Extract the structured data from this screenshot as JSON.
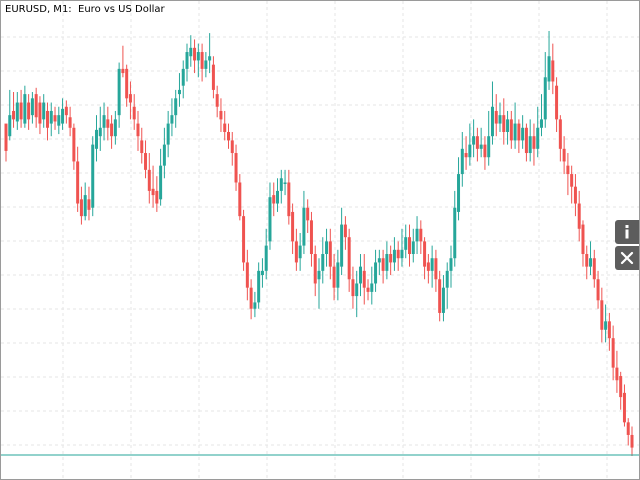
{
  "chart": {
    "title": "EURUSD, M1:  Euro vs US Dollar",
    "symbol": "EURUSD",
    "timeframe": "M1",
    "description": "Euro vs US Dollar"
  },
  "buttons": [
    {
      "name": "info",
      "icon": "info-icon"
    },
    {
      "name": "close",
      "icon": "close-icon"
    }
  ],
  "colors": {
    "bull": "#26a69a",
    "bear": "#ef5350",
    "grid": "#e6e6e6",
    "price_line": "#26a69a",
    "button_bg": "#5d5d5d"
  },
  "chart_data": {
    "type": "candlestick",
    "title": "EURUSD, M1:  Euro vs US Dollar",
    "grid": true,
    "y_axis_shown": false,
    "candles": [
      [
        58,
        45,
        54,
        40
      ],
      [
        52,
        62,
        74,
        50
      ],
      [
        64,
        60,
        73,
        56
      ],
      [
        59,
        68,
        73,
        55
      ],
      [
        68,
        60,
        74,
        56
      ],
      [
        58,
        72,
        76,
        56
      ],
      [
        68,
        60,
        72,
        55
      ],
      [
        62,
        70,
        73,
        58
      ],
      [
        72,
        61,
        75,
        56
      ],
      [
        68,
        58,
        71,
        53
      ],
      [
        60,
        68,
        72,
        56
      ],
      [
        64,
        56,
        68,
        50
      ],
      [
        58,
        64,
        68,
        52
      ],
      [
        62,
        59,
        66,
        55
      ],
      [
        57,
        62,
        66,
        53
      ],
      [
        58,
        65,
        70,
        55
      ],
      [
        66,
        62,
        69,
        58
      ],
      [
        61,
        56,
        66,
        52
      ],
      [
        56,
        40,
        58,
        36
      ],
      [
        40,
        20,
        47,
        16
      ],
      [
        22,
        14,
        28,
        10
      ],
      [
        14,
        24,
        30,
        12
      ],
      [
        22,
        17,
        28,
        12
      ],
      [
        18,
        48,
        52,
        14
      ],
      [
        46,
        55,
        62,
        40
      ],
      [
        52,
        56,
        66,
        45
      ],
      [
        56,
        62,
        68,
        50
      ],
      [
        60,
        56,
        66,
        50
      ],
      [
        58,
        52,
        62,
        46
      ],
      [
        52,
        60,
        64,
        48
      ],
      [
        62,
        84,
        87,
        56
      ],
      [
        84,
        82,
        95,
        80
      ],
      [
        84,
        70,
        86,
        66
      ],
      [
        72,
        68,
        78,
        60
      ],
      [
        66,
        60,
        72,
        55
      ],
      [
        58,
        52,
        64,
        45
      ],
      [
        50,
        44,
        56,
        39
      ],
      [
        44,
        36,
        50,
        32
      ],
      [
        36,
        26,
        44,
        20
      ],
      [
        27,
        24,
        38,
        18
      ],
      [
        26,
        20,
        33,
        16
      ],
      [
        22,
        38,
        46,
        19
      ],
      [
        38,
        48,
        56,
        32
      ],
      [
        48,
        58,
        64,
        42
      ],
      [
        58,
        62,
        70,
        52
      ],
      [
        62,
        70,
        74,
        56
      ],
      [
        72,
        74,
        82,
        66
      ],
      [
        76,
        84,
        88,
        70
      ],
      [
        84,
        92,
        96,
        78
      ],
      [
        90,
        94,
        100,
        85
      ],
      [
        94,
        88,
        98,
        82
      ],
      [
        88,
        92,
        96,
        80
      ],
      [
        92,
        84,
        96,
        78
      ],
      [
        84,
        88,
        92,
        80
      ],
      [
        88,
        90,
        101,
        82
      ],
      [
        86,
        74,
        90,
        70
      ],
      [
        72,
        66,
        76,
        61
      ],
      [
        64,
        60,
        70,
        54
      ],
      [
        58,
        54,
        64,
        50
      ],
      [
        54,
        50,
        58,
        46
      ],
      [
        50,
        44,
        54,
        38
      ],
      [
        44,
        30,
        48,
        26
      ],
      [
        30,
        14,
        34,
        12
      ],
      [
        14,
        -8,
        17,
        -12
      ],
      [
        -8,
        -20,
        -2,
        -26
      ],
      [
        -20,
        -30,
        -16,
        -35
      ],
      [
        -30,
        -27,
        -22,
        -34
      ],
      [
        -27,
        -12,
        -8,
        -30
      ],
      [
        -14,
        -12,
        -6,
        -20
      ],
      [
        -12,
        0,
        8,
        -16
      ],
      [
        2,
        23,
        30,
        -2
      ],
      [
        24,
        20,
        30,
        14
      ],
      [
        20,
        26,
        32,
        16
      ],
      [
        26,
        32,
        36,
        20
      ],
      [
        30,
        30,
        36,
        24
      ],
      [
        30,
        14,
        36,
        10
      ],
      [
        16,
        2,
        20,
        -4
      ],
      [
        2,
        -8,
        8,
        -12
      ],
      [
        -6,
        0,
        6,
        -12
      ],
      [
        0,
        18,
        26,
        -4
      ],
      [
        18,
        12,
        22,
        6
      ],
      [
        12,
        -4,
        16,
        -10
      ],
      [
        -4,
        -18,
        0,
        -24
      ],
      [
        -16,
        -12,
        -6,
        -30
      ],
      [
        -12,
        -4,
        4,
        -18
      ],
      [
        -4,
        2,
        8,
        -10
      ],
      [
        2,
        -10,
        8,
        -16
      ],
      [
        -10,
        -20,
        -4,
        -26
      ],
      [
        -20,
        -8,
        -2,
        -26
      ],
      [
        -10,
        10,
        18,
        -14
      ],
      [
        10,
        4,
        14,
        -2
      ],
      [
        4,
        -16,
        8,
        -22
      ],
      [
        -16,
        -24,
        -10,
        -30
      ],
      [
        -24,
        -18,
        -12,
        -34
      ],
      [
        -18,
        -10,
        -4,
        -24
      ],
      [
        -12,
        -20,
        -4,
        -28
      ],
      [
        -20,
        -22,
        -16,
        -26
      ],
      [
        -22,
        -18,
        -10,
        -28
      ],
      [
        -18,
        -8,
        -2,
        -22
      ],
      [
        -8,
        -6,
        -2,
        -14
      ],
      [
        -6,
        -12,
        -2,
        -18
      ],
      [
        -12,
        -4,
        2,
        -16
      ],
      [
        -4,
        -8,
        0,
        -14
      ],
      [
        -8,
        -2,
        4,
        -12
      ],
      [
        -2,
        -6,
        2,
        -12
      ],
      [
        -6,
        -2,
        8,
        -10
      ],
      [
        -2,
        4,
        10,
        -6
      ],
      [
        4,
        -4,
        10,
        -10
      ],
      [
        -4,
        2,
        8,
        -8
      ],
      [
        2,
        8,
        14,
        -4
      ],
      [
        8,
        2,
        12,
        -4
      ],
      [
        2,
        -10,
        4,
        -16
      ],
      [
        -8,
        -12,
        -4,
        -18
      ],
      [
        -12,
        -6,
        0,
        -20
      ],
      [
        -6,
        -16,
        -2,
        -22
      ],
      [
        -16,
        -32,
        -12,
        -36
      ],
      [
        -32,
        -20,
        -14,
        -36
      ],
      [
        -20,
        -12,
        -8,
        -30
      ],
      [
        -12,
        -6,
        0,
        -20
      ],
      [
        -6,
        18,
        26,
        -10
      ],
      [
        16,
        34,
        42,
        12
      ],
      [
        34,
        46,
        54,
        28
      ],
      [
        44,
        42,
        52,
        36
      ],
      [
        42,
        48,
        58,
        38
      ],
      [
        48,
        52,
        60,
        42
      ],
      [
        52,
        46,
        56,
        40
      ],
      [
        46,
        48,
        56,
        42
      ],
      [
        48,
        42,
        52,
        36
      ],
      [
        42,
        52,
        64,
        38
      ],
      [
        52,
        66,
        78,
        48
      ],
      [
        64,
        58,
        72,
        52
      ],
      [
        58,
        62,
        68,
        54
      ],
      [
        62,
        54,
        70,
        48
      ],
      [
        54,
        60,
        64,
        48
      ],
      [
        60,
        50,
        64,
        46
      ],
      [
        50,
        58,
        68,
        46
      ],
      [
        58,
        50,
        60,
        44
      ],
      [
        50,
        56,
        62,
        46
      ],
      [
        56,
        44,
        58,
        40
      ],
      [
        44,
        52,
        60,
        40
      ],
      [
        52,
        46,
        58,
        38
      ],
      [
        46,
        56,
        66,
        42
      ],
      [
        56,
        60,
        72,
        52
      ],
      [
        60,
        80,
        92,
        56
      ],
      [
        78,
        90,
        102,
        74
      ],
      [
        88,
        78,
        96,
        72
      ],
      [
        76,
        60,
        80,
        54
      ],
      [
        60,
        46,
        62,
        40
      ],
      [
        46,
        40,
        52,
        34
      ],
      [
        38,
        34,
        44,
        24
      ],
      [
        34,
        28,
        38,
        20
      ],
      [
        28,
        20,
        34,
        14
      ],
      [
        20,
        8,
        26,
        2
      ],
      [
        10,
        -4,
        12,
        -10
      ],
      [
        -4,
        -10,
        0,
        -16
      ],
      [
        -10,
        -6,
        2,
        -14
      ],
      [
        -6,
        -16,
        -2,
        -20
      ],
      [
        -16,
        -26,
        -12,
        -30
      ],
      [
        -26,
        -40,
        -20,
        -46
      ],
      [
        -40,
        -36,
        -28,
        -46
      ],
      [
        -36,
        -44,
        -32,
        -50
      ],
      [
        -44,
        -58,
        -38,
        -64
      ],
      [
        -58,
        -64,
        -50,
        -70
      ],
      [
        -62,
        -72,
        -60,
        -78
      ],
      [
        -70,
        -84,
        -66,
        -86
      ],
      [
        -84,
        -90,
        -82,
        -95
      ],
      [
        -90,
        -96,
        -86,
        -100
      ]
    ]
  }
}
